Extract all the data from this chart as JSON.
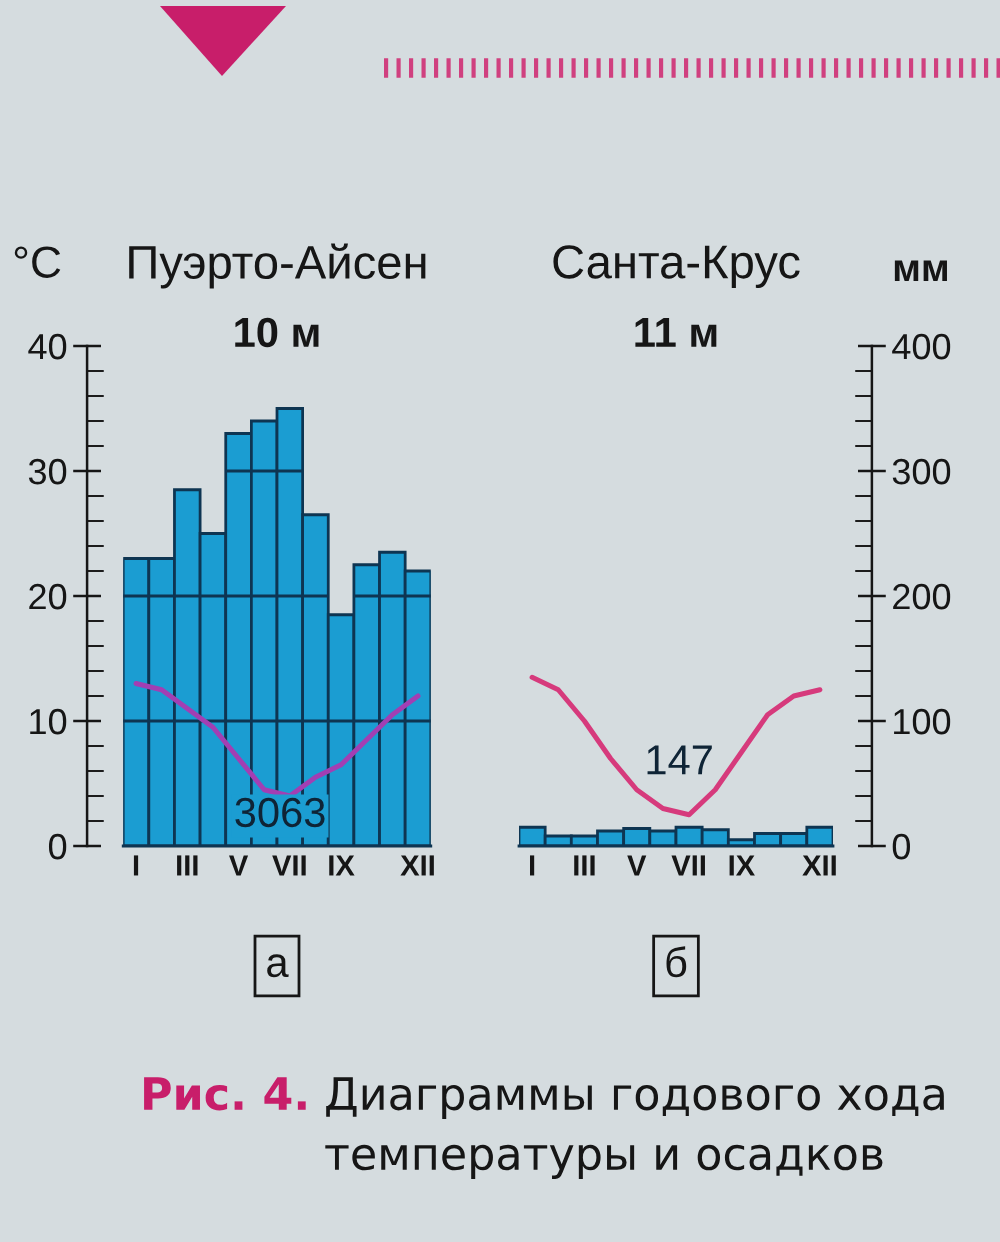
{
  "chart_data": [
    {
      "type": "bar",
      "title": "Пуэрто-Айсен",
      "subtitle": "10 м",
      "ylabel": "°C",
      "categories": [
        "I",
        null,
        "III",
        null,
        "V",
        null,
        "VII",
        null,
        "IX",
        null,
        null,
        "XII"
      ],
      "series": [
        {
          "axis": "y2",
          "color": "#1b9dd2",
          "values": [
            230,
            230,
            285,
            250,
            330,
            340,
            350,
            265,
            185,
            225,
            235,
            220
          ]
        },
        {
          "type": "line",
          "axis": "y",
          "color": "#a23fb3",
          "values": [
            13,
            12.5,
            11,
            9.5,
            7,
            4.5,
            4,
            5.5,
            6.5,
            8.5,
            10.5,
            12
          ]
        }
      ],
      "ylim": [
        0,
        40
      ],
      "yticks": [
        0,
        {
          "value": 2,
          "label": null
        },
        {
          "value": 4,
          "label": null
        },
        {
          "value": 6,
          "label": null
        },
        {
          "value": 8,
          "label": null
        },
        10,
        {
          "value": 12,
          "label": null
        },
        {
          "value": 14,
          "label": null
        },
        {
          "value": 16,
          "label": null
        },
        {
          "value": 18,
          "label": null
        },
        20,
        {
          "value": 22,
          "label": null
        },
        {
          "value": 24,
          "label": null
        },
        {
          "value": 26,
          "label": null
        },
        {
          "value": 28,
          "label": null
        },
        30,
        {
          "value": 32,
          "label": null
        },
        {
          "value": 34,
          "label": null
        },
        {
          "value": 36,
          "label": null
        },
        {
          "value": 38,
          "label": null
        },
        40
      ],
      "y2lim": [
        0,
        400
      ],
      "tick_labels": [
        "x",
        "y"
      ],
      "grid": "y",
      "annotations": [
        "3063",
        "а"
      ]
    },
    {
      "type": "bar",
      "title": "Санта-Крус",
      "subtitle": "11 м",
      "y2label": "мм",
      "categories": [
        "I",
        null,
        "III",
        null,
        "V",
        null,
        "VII",
        null,
        "IX",
        null,
        null,
        "XII"
      ],
      "series": [
        {
          "axis": "y2",
          "color": "#1b9dd2",
          "values": [
            15,
            8,
            8,
            12,
            14,
            12,
            15,
            13,
            5,
            10,
            10,
            15
          ]
        },
        {
          "type": "line",
          "axis": "y",
          "color": "#d63a7c",
          "values": [
            13.5,
            12.5,
            10,
            7,
            4.5,
            3,
            2.5,
            4.5,
            7.5,
            10.5,
            12,
            12.5
          ]
        }
      ],
      "ylim": [
        0,
        40
      ],
      "y2lim": [
        0,
        400
      ],
      "y2ticks": [
        0,
        {
          "value": 20,
          "label": null
        },
        {
          "value": 40,
          "label": null
        },
        {
          "value": 60,
          "label": null
        },
        {
          "value": 80,
          "label": null
        },
        100,
        {
          "value": 120,
          "label": null
        },
        {
          "value": 140,
          "label": null
        },
        {
          "value": 160,
          "label": null
        },
        {
          "value": 180,
          "label": null
        },
        200,
        {
          "value": 220,
          "label": null
        },
        {
          "value": 240,
          "label": null
        },
        {
          "value": 260,
          "label": null
        },
        {
          "value": 280,
          "label": null
        },
        300,
        {
          "value": 320,
          "label": null
        },
        {
          "value": 340,
          "label": null
        },
        {
          "value": 360,
          "label": null
        },
        {
          "value": 380,
          "label": null
        },
        400
      ],
      "tick_labels": [
        "x",
        "y2"
      ],
      "annotations": [
        "147",
        "б",
        "Рис. 4.",
        "Диаграммы годового хода температуры и осадков"
      ]
    }
  ]
}
